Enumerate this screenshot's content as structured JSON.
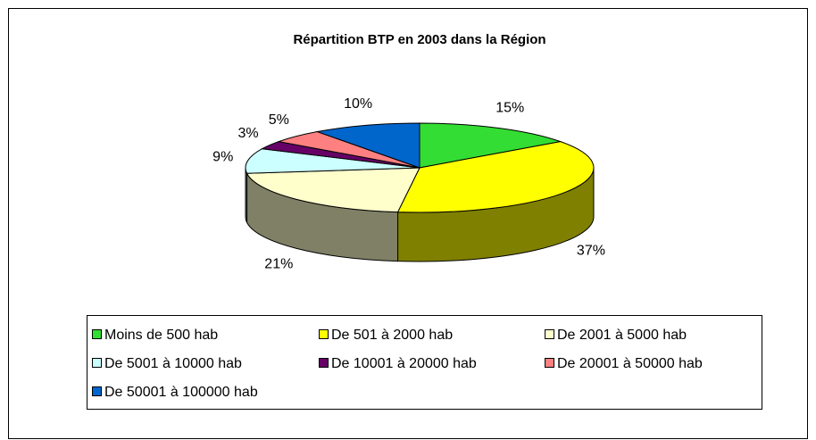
{
  "chart_data": {
    "type": "pie3d",
    "title": "Répartition BTP en 2003 dans la Région",
    "categories": [
      "Moins de 500 hab",
      "De 501 à 2000 hab",
      "De 2001 à 5000 hab",
      "De 5001 à 10000 hab",
      "De 10001 à 20000 hab",
      "De 20001 à 50000 hab",
      "De 50001 à 100000 hab"
    ],
    "values": [
      15,
      37,
      21,
      9,
      3,
      5,
      10
    ],
    "value_labels": [
      "15%",
      "37%",
      "21%",
      "9%",
      "3%",
      "5%",
      "10%"
    ],
    "colors": [
      "#33dd33",
      "#ffff00",
      "#ffffcc",
      "#ccffff",
      "#660066",
      "#ff8080",
      "#0066cc"
    ],
    "legend": "bottom"
  }
}
